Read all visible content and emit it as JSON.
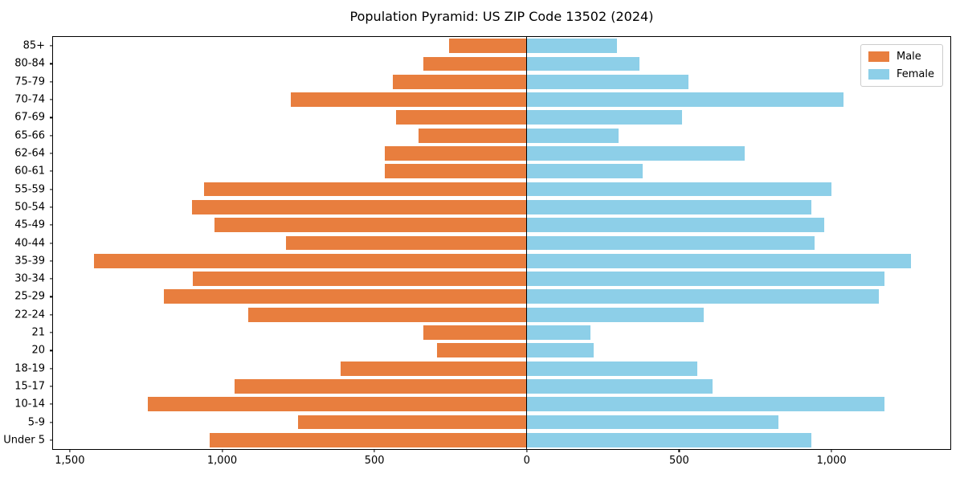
{
  "title": "Population Pyramid: US ZIP Code 13502 (2024)",
  "legend": {
    "entries": [
      {
        "label": "Male",
        "color": "#e87e3e"
      },
      {
        "label": "Female",
        "color": "#8dcfe8"
      }
    ]
  },
  "colors": {
    "male": "#e87e3e",
    "female": "#8dcfe8",
    "axis": "#000000",
    "legend_border": "#cccccc",
    "background": "#ffffff"
  },
  "chart_data": {
    "type": "bar",
    "variant": "population-pyramid",
    "title": "Population Pyramid: US ZIP Code 13502 (2024)",
    "categories": [
      "85+",
      "80-84",
      "75-79",
      "70-74",
      "67-69",
      "65-66",
      "62-64",
      "60-61",
      "55-59",
      "50-54",
      "45-49",
      "40-44",
      "35-39",
      "30-34",
      "25-29",
      "22-24",
      "21",
      "20",
      "18-19",
      "15-17",
      "10-14",
      "5-9",
      "Under 5"
    ],
    "series": [
      {
        "name": "Male",
        "side": "left",
        "color": "#e87e3e",
        "values": [
          255,
          340,
          440,
          775,
          430,
          355,
          465,
          465,
          1060,
          1100,
          1025,
          790,
          1420,
          1095,
          1190,
          915,
          340,
          295,
          610,
          960,
          1245,
          750,
          1040
        ]
      },
      {
        "name": "Female",
        "side": "right",
        "color": "#8dcfe8",
        "values": [
          295,
          370,
          530,
          1040,
          510,
          300,
          715,
          380,
          1000,
          935,
          975,
          945,
          1260,
          1175,
          1155,
          580,
          210,
          220,
          560,
          610,
          1175,
          825,
          935
        ]
      }
    ],
    "x_ticks": [
      {
        "value": -1500,
        "label": "1,500"
      },
      {
        "value": -1000,
        "label": "1,000"
      },
      {
        "value": -500,
        "label": "500"
      },
      {
        "value": 0,
        "label": "0"
      },
      {
        "value": 500,
        "label": "500"
      },
      {
        "value": 1000,
        "label": "1,000"
      }
    ],
    "xlim": [
      -1555,
      1390
    ],
    "bar_height_fraction": 0.8,
    "grid": false,
    "legend_position": "upper right",
    "zero_axis_line": true
  }
}
